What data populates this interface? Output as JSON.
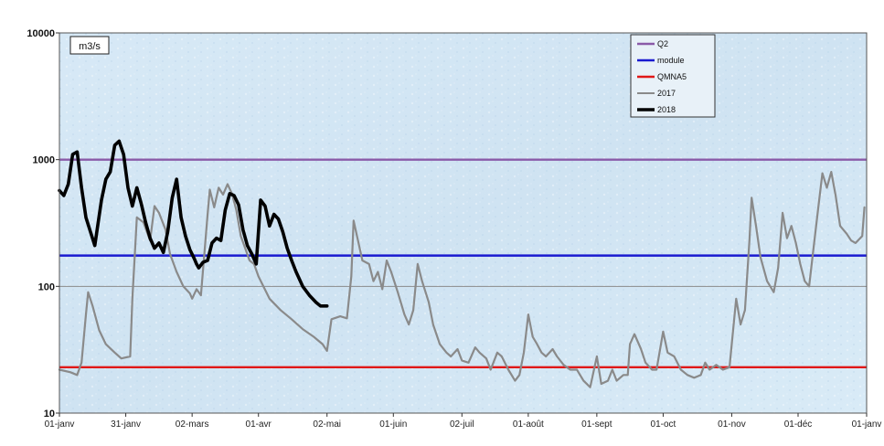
{
  "chart_data": {
    "type": "line",
    "unit_label": "m3/s",
    "y_scale": "log",
    "ylim": [
      10,
      10000
    ],
    "y_ticks": [
      {
        "value": 10,
        "label": "10"
      },
      {
        "value": 100,
        "label": "100"
      },
      {
        "value": 1000,
        "label": "1000"
      },
      {
        "value": 10000,
        "label": "10000"
      }
    ],
    "xlim": [
      0,
      365
    ],
    "x_ticks": [
      {
        "day": 0,
        "label": "01-janv"
      },
      {
        "day": 30,
        "label": "31-janv"
      },
      {
        "day": 60,
        "label": "02-mars"
      },
      {
        "day": 90,
        "label": "01-avr"
      },
      {
        "day": 121,
        "label": "02-mai"
      },
      {
        "day": 151,
        "label": "01-juin"
      },
      {
        "day": 182,
        "label": "02-juil"
      },
      {
        "day": 212,
        "label": "01-août"
      },
      {
        "day": 243,
        "label": "01-sept"
      },
      {
        "day": 273,
        "label": "01-oct"
      },
      {
        "day": 304,
        "label": "01-nov"
      },
      {
        "day": 334,
        "label": "01-déc"
      },
      {
        "day": 365,
        "label": "01-janv"
      }
    ],
    "grid": true,
    "legend_position": "top-right",
    "reference_lines": [
      {
        "name": "Q2",
        "value": 1000,
        "color": "#8a5aa8"
      },
      {
        "name": "module",
        "value": 175,
        "color": "#1a1ad0"
      },
      {
        "name": "QMNA5",
        "value": 23,
        "color": "#e01818"
      }
    ],
    "series": [
      {
        "name": "2017",
        "color": "#8a8a8a",
        "points": [
          [
            0,
            22
          ],
          [
            5,
            21
          ],
          [
            8,
            20
          ],
          [
            10,
            25
          ],
          [
            12,
            60
          ],
          [
            13,
            90
          ],
          [
            15,
            70
          ],
          [
            18,
            45
          ],
          [
            21,
            35
          ],
          [
            25,
            30
          ],
          [
            28,
            27
          ],
          [
            32,
            28
          ],
          [
            33,
            80
          ],
          [
            35,
            350
          ],
          [
            38,
            320
          ],
          [
            41,
            230
          ],
          [
            43,
            430
          ],
          [
            45,
            380
          ],
          [
            48,
            280
          ],
          [
            50,
            180
          ],
          [
            53,
            130
          ],
          [
            56,
            100
          ],
          [
            59,
            88
          ],
          [
            60,
            80
          ],
          [
            62,
            95
          ],
          [
            64,
            85
          ],
          [
            67,
            370
          ],
          [
            68,
            580
          ],
          [
            70,
            420
          ],
          [
            72,
            600
          ],
          [
            74,
            530
          ],
          [
            76,
            640
          ],
          [
            78,
            540
          ],
          [
            80,
            400
          ],
          [
            82,
            250
          ],
          [
            84,
            200
          ],
          [
            86,
            160
          ],
          [
            88,
            150
          ],
          [
            90,
            120
          ],
          [
            95,
            80
          ],
          [
            100,
            65
          ],
          [
            105,
            55
          ],
          [
            110,
            46
          ],
          [
            115,
            40
          ],
          [
            119,
            35
          ],
          [
            121,
            31
          ],
          [
            123,
            55
          ],
          [
            127,
            58
          ],
          [
            130,
            56
          ],
          [
            132,
            120
          ],
          [
            133,
            330
          ],
          [
            135,
            230
          ],
          [
            137,
            160
          ],
          [
            140,
            150
          ],
          [
            142,
            110
          ],
          [
            144,
            130
          ],
          [
            146,
            95
          ],
          [
            148,
            160
          ],
          [
            150,
            130
          ],
          [
            153,
            90
          ],
          [
            156,
            60
          ],
          [
            158,
            50
          ],
          [
            160,
            65
          ],
          [
            162,
            150
          ],
          [
            164,
            110
          ],
          [
            167,
            75
          ],
          [
            169,
            50
          ],
          [
            172,
            35
          ],
          [
            175,
            30
          ],
          [
            177,
            28
          ],
          [
            180,
            32
          ],
          [
            182,
            26
          ],
          [
            185,
            25
          ],
          [
            188,
            33
          ],
          [
            190,
            30
          ],
          [
            193,
            27
          ],
          [
            195,
            22
          ],
          [
            198,
            30
          ],
          [
            200,
            28
          ],
          [
            203,
            22
          ],
          [
            206,
            18
          ],
          [
            208,
            20
          ],
          [
            210,
            30
          ],
          [
            212,
            60
          ],
          [
            214,
            40
          ],
          [
            216,
            35
          ],
          [
            218,
            30
          ],
          [
            220,
            28
          ],
          [
            223,
            32
          ],
          [
            225,
            28
          ],
          [
            228,
            24
          ],
          [
            231,
            22
          ],
          [
            234,
            22
          ],
          [
            237,
            18
          ],
          [
            240,
            16
          ],
          [
            243,
            28
          ],
          [
            245,
            17
          ],
          [
            248,
            18
          ],
          [
            250,
            22
          ],
          [
            252,
            18
          ],
          [
            255,
            20
          ],
          [
            257,
            20
          ],
          [
            258,
            35
          ],
          [
            260,
            42
          ],
          [
            263,
            32
          ],
          [
            265,
            25
          ],
          [
            268,
            22
          ],
          [
            270,
            22
          ],
          [
            273,
            44
          ],
          [
            275,
            30
          ],
          [
            278,
            28
          ],
          [
            281,
            22
          ],
          [
            284,
            20
          ],
          [
            287,
            19
          ],
          [
            290,
            20
          ],
          [
            292,
            25
          ],
          [
            294,
            22
          ],
          [
            297,
            24
          ],
          [
            300,
            22
          ],
          [
            303,
            23
          ],
          [
            306,
            80
          ],
          [
            308,
            50
          ],
          [
            310,
            65
          ],
          [
            312,
            230
          ],
          [
            313,
            500
          ],
          [
            315,
            300
          ],
          [
            317,
            170
          ],
          [
            320,
            110
          ],
          [
            323,
            90
          ],
          [
            325,
            140
          ],
          [
            327,
            380
          ],
          [
            329,
            240
          ],
          [
            331,
            300
          ],
          [
            333,
            220
          ],
          [
            335,
            150
          ],
          [
            337,
            110
          ],
          [
            339,
            100
          ],
          [
            341,
            200
          ],
          [
            343,
            400
          ],
          [
            345,
            780
          ],
          [
            347,
            600
          ],
          [
            349,
            800
          ],
          [
            351,
            520
          ],
          [
            353,
            300
          ],
          [
            356,
            260
          ],
          [
            358,
            230
          ],
          [
            360,
            220
          ],
          [
            363,
            250
          ],
          [
            364,
            420
          ]
        ]
      },
      {
        "name": "2018",
        "color": "#000000",
        "points": [
          [
            0,
            570
          ],
          [
            2,
            520
          ],
          [
            4,
            640
          ],
          [
            6,
            1100
          ],
          [
            8,
            1150
          ],
          [
            10,
            600
          ],
          [
            12,
            350
          ],
          [
            14,
            270
          ],
          [
            16,
            210
          ],
          [
            19,
            480
          ],
          [
            21,
            700
          ],
          [
            23,
            800
          ],
          [
            25,
            1300
          ],
          [
            27,
            1400
          ],
          [
            29,
            1100
          ],
          [
            31,
            600
          ],
          [
            33,
            430
          ],
          [
            35,
            600
          ],
          [
            37,
            450
          ],
          [
            39,
            320
          ],
          [
            41,
            240
          ],
          [
            43,
            200
          ],
          [
            45,
            220
          ],
          [
            47,
            185
          ],
          [
            49,
            270
          ],
          [
            51,
            500
          ],
          [
            53,
            700
          ],
          [
            55,
            350
          ],
          [
            57,
            250
          ],
          [
            59,
            195
          ],
          [
            61,
            165
          ],
          [
            62,
            150
          ],
          [
            63,
            140
          ],
          [
            65,
            155
          ],
          [
            67,
            160
          ],
          [
            69,
            220
          ],
          [
            71,
            240
          ],
          [
            73,
            230
          ],
          [
            75,
            400
          ],
          [
            77,
            540
          ],
          [
            79,
            520
          ],
          [
            81,
            440
          ],
          [
            83,
            280
          ],
          [
            85,
            210
          ],
          [
            87,
            180
          ],
          [
            89,
            150
          ],
          [
            91,
            480
          ],
          [
            93,
            430
          ],
          [
            95,
            300
          ],
          [
            97,
            370
          ],
          [
            99,
            340
          ],
          [
            101,
            270
          ],
          [
            103,
            200
          ],
          [
            105,
            160
          ],
          [
            107,
            130
          ],
          [
            110,
            100
          ],
          [
            113,
            85
          ],
          [
            116,
            75
          ],
          [
            118,
            70
          ],
          [
            121,
            70
          ]
        ]
      }
    ]
  }
}
